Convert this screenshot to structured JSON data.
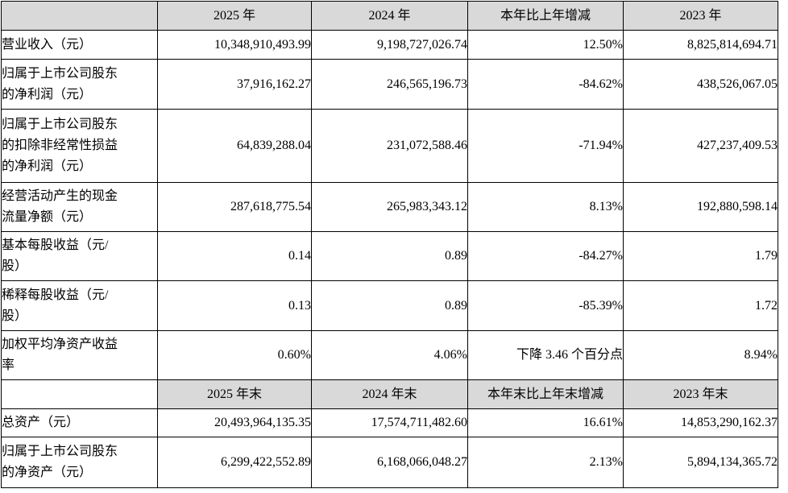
{
  "header": {
    "columns": [
      "2025 年",
      "2024 年",
      "本年比上年增减",
      "2023 年"
    ]
  },
  "rows": [
    {
      "label_lines": [
        "营业收入（元）"
      ],
      "values": [
        "10,348,910,493.99",
        "9,198,727,026.74",
        "12.50%",
        "8,825,814,694.71"
      ]
    },
    {
      "label_lines": [
        "归属于上市公司股东",
        "的净利润（元）"
      ],
      "values": [
        "37,916,162.27",
        "246,565,196.73",
        "-84.62%",
        "438,526,067.05"
      ]
    },
    {
      "label_lines": [
        "归属于上市公司股东",
        "的扣除非经常性损益",
        "的净利润（元）"
      ],
      "values": [
        "64,839,288.04",
        "231,072,588.46",
        "-71.94%",
        "427,237,409.53"
      ]
    },
    {
      "label_lines": [
        "经营活动产生的现金",
        "流量净额（元）"
      ],
      "values": [
        "287,618,775.54",
        "265,983,343.12",
        "8.13%",
        "192,880,598.14"
      ]
    },
    {
      "label_lines": [
        "基本每股收益（元/",
        "股）"
      ],
      "values": [
        "0.14",
        "0.89",
        "-84.27%",
        "1.79"
      ]
    },
    {
      "label_lines": [
        "稀释每股收益（元/",
        "股）"
      ],
      "values": [
        "0.13",
        "0.89",
        "-85.39%",
        "1.72"
      ]
    },
    {
      "label_lines": [
        "加权平均净资产收益",
        "率"
      ],
      "values": [
        "0.60%",
        "4.06%",
        "下降 3.46 个百分点",
        "8.94%"
      ]
    }
  ],
  "header2": {
    "columns": [
      "2025 年末",
      "2024 年末",
      "本年末比上年末增减",
      "2023 年末"
    ]
  },
  "rows2": [
    {
      "label_lines": [
        "总资产（元）"
      ],
      "values": [
        "20,493,964,135.35",
        "17,574,711,482.60",
        "16.61%",
        "14,853,290,162.37"
      ]
    },
    {
      "label_lines": [
        "归属于上市公司股东",
        "的净资产（元）"
      ],
      "values": [
        "6,299,422,552.89",
        "6,168,066,048.27",
        "2.13%",
        "5,894,134,365.72"
      ]
    }
  ],
  "colors": {
    "header_bg": "#d9d9d9",
    "border": "#000000",
    "text": "#000000"
  }
}
